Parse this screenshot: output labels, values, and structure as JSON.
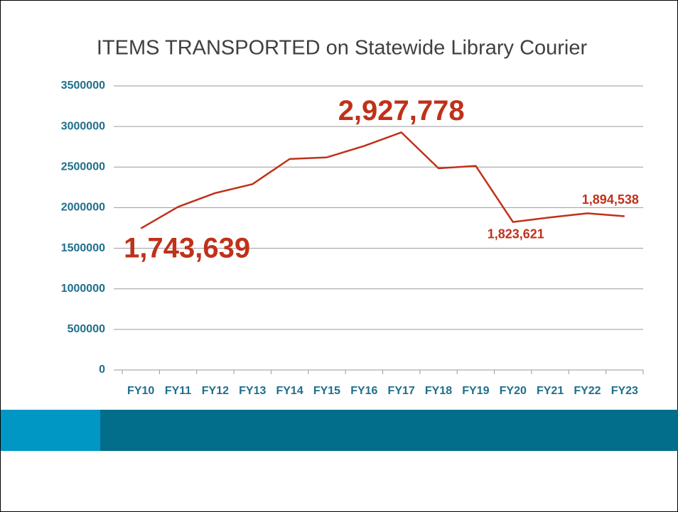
{
  "chart_data": {
    "type": "line",
    "title": "ITEMS TRANSPORTED on Statewide Library Courier",
    "categories": [
      "FY10",
      "FY11",
      "FY12",
      "FY13",
      "FY14",
      "FY15",
      "FY16",
      "FY17",
      "FY18",
      "FY19",
      "FY20",
      "FY21",
      "FY22",
      "FY23"
    ],
    "series": [
      {
        "name": "Items Transported",
        "color": "#c0311a",
        "values": [
          1743639,
          2010000,
          2180000,
          2290000,
          2600000,
          2620000,
          2760000,
          2927778,
          2485000,
          2515000,
          1823621,
          1880000,
          1930000,
          1894538
        ],
        "value_labels": [
          "1,743,639",
          null,
          null,
          null,
          null,
          null,
          null,
          "2,927,778",
          null,
          null,
          "1,823,621",
          null,
          null,
          "1,894,538"
        ]
      }
    ],
    "ylim": [
      0,
      3500000
    ],
    "yticks": [
      0,
      500000,
      1000000,
      1500000,
      2000000,
      2500000,
      3000000,
      3500000
    ],
    "grid": true
  }
}
